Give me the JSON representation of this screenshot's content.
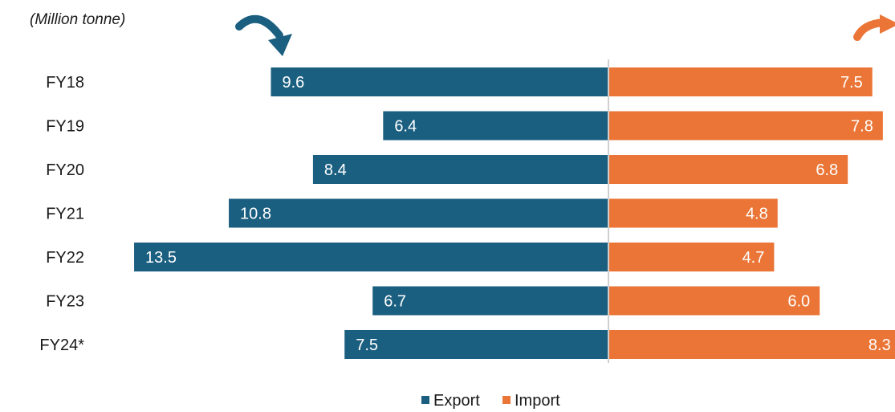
{
  "chart_data": {
    "type": "bar",
    "orientation": "horizontal-diverging",
    "unit_label": "(Million tonne)",
    "categories": [
      "FY18",
      "FY19",
      "FY20",
      "FY21",
      "FY22",
      "FY23",
      "FY24*"
    ],
    "series": [
      {
        "name": "Export",
        "values": [
          9.6,
          6.4,
          8.4,
          10.8,
          13.5,
          6.7,
          7.5
        ],
        "direction": "left",
        "color": "#1b5f80"
      },
      {
        "name": "Import",
        "values": [
          7.5,
          7.8,
          6.8,
          4.8,
          4.7,
          6.0,
          8.3
        ],
        "direction": "right",
        "color": "#ea7536"
      }
    ],
    "legend": {
      "position": "bottom-center"
    },
    "grid": false
  },
  "icons": {
    "export_arrow": "curved-arrow-down-right-icon",
    "import_arrow": "curved-arrow-icon"
  },
  "colors": {
    "export": "#1b5f80",
    "import": "#ea7536",
    "axis": "#bfbfbf"
  }
}
